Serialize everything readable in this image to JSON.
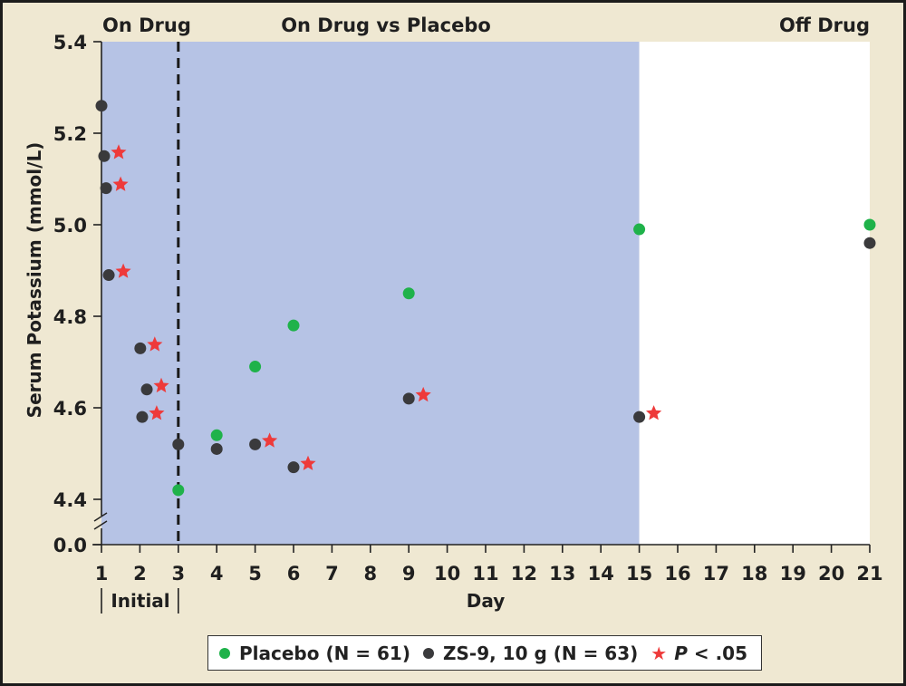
{
  "chart_data": {
    "type": "scatter",
    "title": "",
    "xlabel": "Day",
    "ylabel": "Serum Potassium (mmol/L)",
    "x_ticks": [
      1,
      2,
      3,
      4,
      5,
      6,
      7,
      8,
      9,
      10,
      11,
      12,
      13,
      14,
      15,
      16,
      17,
      18,
      19,
      20,
      21
    ],
    "xlim": [
      1,
      21
    ],
    "y_ticks": [
      "0.0",
      "4.4",
      "4.6",
      "4.8",
      "5.0",
      "5.2",
      "5.4"
    ],
    "ylim": [
      4.4,
      5.4
    ],
    "y_axis_break": "between 0.0 and 4.4",
    "phase_labels": [
      {
        "text": "On Drug",
        "position": "top-left"
      },
      {
        "text": "On Drug vs Placebo",
        "position": "top-center"
      },
      {
        "text": "Off Drug",
        "position": "top-right"
      }
    ],
    "shaded_regions": [
      {
        "from_day": 1,
        "to_day": 15,
        "color": "#b6c3e5",
        "meaning": "on treatment"
      },
      {
        "from_day": 15,
        "to_day": 21,
        "color": "#ffffff",
        "meaning": "off drug"
      }
    ],
    "reference_line": {
      "day": 3,
      "style": "dashed"
    },
    "initial_bracket": {
      "text": "Initial",
      "from_day": 1,
      "to_day": 3
    },
    "series": [
      {
        "name": "Placebo (N = 61)",
        "color": "#1fb24a",
        "marker": "circle",
        "points": [
          {
            "x": 3,
            "y": 4.42
          },
          {
            "x": 4,
            "y": 4.54
          },
          {
            "x": 5,
            "y": 4.69
          },
          {
            "x": 6,
            "y": 4.78
          },
          {
            "x": 9,
            "y": 4.85
          },
          {
            "x": 15,
            "y": 4.99
          },
          {
            "x": 21,
            "y": 5.0
          }
        ]
      },
      {
        "name": "ZS-9, 10 g (N = 63)",
        "color": "#3a3a3c",
        "marker": "circle",
        "points": [
          {
            "x": 1.0,
            "y": 5.26,
            "sig": false
          },
          {
            "x": 1.07,
            "y": 5.15,
            "sig": true
          },
          {
            "x": 1.12,
            "y": 5.08,
            "sig": true
          },
          {
            "x": 1.19,
            "y": 4.89,
            "sig": true
          },
          {
            "x": 2.01,
            "y": 4.73,
            "sig": true
          },
          {
            "x": 2.18,
            "y": 4.64,
            "sig": true
          },
          {
            "x": 2.06,
            "y": 4.58,
            "sig": true
          },
          {
            "x": 3,
            "y": 4.52,
            "sig": false
          },
          {
            "x": 4,
            "y": 4.51,
            "sig": false
          },
          {
            "x": 5,
            "y": 4.52,
            "sig": true
          },
          {
            "x": 6,
            "y": 4.47,
            "sig": true
          },
          {
            "x": 9,
            "y": 4.62,
            "sig": true
          },
          {
            "x": 15,
            "y": 4.58,
            "sig": true
          },
          {
            "x": 21,
            "y": 4.96,
            "sig": false
          }
        ]
      }
    ],
    "significance_marker": {
      "name": "P < .05",
      "color": "#ee3a3a",
      "marker": "star"
    },
    "legend": {
      "placement": "bottom-center",
      "items": [
        {
          "label": "Placebo (N = 61)",
          "color": "#1fb24a",
          "marker": "circle"
        },
        {
          "label": "ZS-9, 10 g (N = 63)",
          "color": "#3a3a3c",
          "marker": "circle"
        },
        {
          "label_italic": "P",
          "label_rest": " < .05",
          "color": "#ee3a3a",
          "marker": "star"
        }
      ]
    }
  }
}
